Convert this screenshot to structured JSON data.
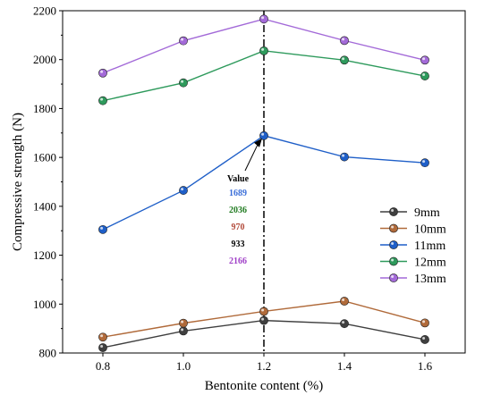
{
  "chart_data": {
    "type": "line",
    "xlabel": "Bentonite content (%)",
    "ylabel": "Compressive strength (N)",
    "x": [
      0.8,
      1.0,
      1.2,
      1.4,
      1.6
    ],
    "x_tick_labels": [
      "0.8",
      "1.0",
      "1.2",
      "1.4",
      "1.6"
    ],
    "xlim": [
      0.7,
      1.7
    ],
    "ylim": [
      800,
      2200
    ],
    "y_ticks": [
      800,
      1000,
      1200,
      1400,
      1600,
      1800,
      2000,
      2200
    ],
    "grid": false,
    "legend_position": "right",
    "series": [
      {
        "name": "9mm",
        "color": "#3f3f3f",
        "values": [
          822,
          890,
          933,
          920,
          855
        ]
      },
      {
        "name": "10mm",
        "color": "#b06a3a",
        "values": [
          865,
          922,
          970,
          1012,
          923
        ]
      },
      {
        "name": "11mm",
        "color": "#1f5fc8",
        "values": [
          1305,
          1465,
          1689,
          1602,
          1578
        ]
      },
      {
        "name": "12mm",
        "color": "#2e9a5c",
        "values": [
          1832,
          1905,
          2036,
          1998,
          1933
        ]
      },
      {
        "name": "13mm",
        "color": "#a36ad8",
        "values": [
          1945,
          2077,
          2166,
          2078,
          1998
        ]
      }
    ],
    "reference_line_x": 1.2,
    "annotation": {
      "title": "Value",
      "target_x": 1.2,
      "target_y": 1689,
      "values": [
        {
          "text": "1689",
          "color": "#3b6fd9"
        },
        {
          "text": "2036",
          "color": "#1f7a1f"
        },
        {
          "text": "970",
          "color": "#b24a3a"
        },
        {
          "text": "933",
          "color": "#000000"
        },
        {
          "text": "2166",
          "color": "#a040c8"
        }
      ]
    }
  }
}
